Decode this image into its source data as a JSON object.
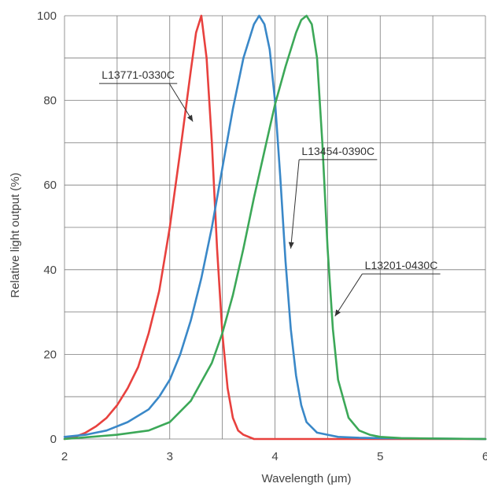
{
  "chart_data": {
    "type": "line",
    "xlabel": "Wavelength (μm)",
    "ylabel": "Relative light output (%)",
    "xlim": [
      2,
      6
    ],
    "ylim": [
      0,
      100
    ],
    "x_ticks": [
      "2",
      "3",
      "4",
      "5",
      "6"
    ],
    "y_ticks": [
      "0",
      "20",
      "40",
      "60",
      "80",
      "100"
    ],
    "grid": true,
    "series": [
      {
        "name": "L13771-0330C",
        "color": "#e8413e",
        "x": [
          2.0,
          2.1,
          2.2,
          2.3,
          2.4,
          2.5,
          2.6,
          2.7,
          2.8,
          2.9,
          3.0,
          3.1,
          3.2,
          3.25,
          3.3,
          3.35,
          3.4,
          3.45,
          3.5,
          3.55,
          3.6,
          3.65,
          3.7,
          3.8,
          4.0,
          4.5,
          5.0,
          6.0
        ],
        "y": [
          0,
          0.5,
          1.5,
          3,
          5,
          8,
          12,
          17,
          25,
          35,
          50,
          68,
          87,
          96,
          100,
          90,
          70,
          45,
          25,
          12,
          5,
          2,
          1,
          0,
          0,
          0,
          0,
          0
        ]
      },
      {
        "name": "L13454-0390C",
        "color": "#3a88c8",
        "x": [
          2.0,
          2.2,
          2.4,
          2.6,
          2.8,
          2.9,
          3.0,
          3.1,
          3.2,
          3.3,
          3.4,
          3.5,
          3.6,
          3.7,
          3.8,
          3.85,
          3.9,
          3.95,
          4.0,
          4.05,
          4.1,
          4.15,
          4.2,
          4.25,
          4.3,
          4.4,
          4.5,
          4.6,
          4.8,
          5.0,
          6.0
        ],
        "y": [
          0.5,
          1,
          2,
          4,
          7,
          10,
          14,
          20,
          28,
          38,
          50,
          64,
          78,
          90,
          98,
          100,
          98,
          92,
          80,
          62,
          42,
          26,
          15,
          8,
          4,
          1.5,
          1,
          0.5,
          0.3,
          0.2,
          0
        ]
      },
      {
        "name": "L13201-0430C",
        "color": "#3ca858",
        "x": [
          2.0,
          2.5,
          2.8,
          3.0,
          3.2,
          3.4,
          3.5,
          3.6,
          3.7,
          3.8,
          3.9,
          4.0,
          4.1,
          4.2,
          4.25,
          4.3,
          4.35,
          4.4,
          4.45,
          4.5,
          4.55,
          4.6,
          4.7,
          4.8,
          4.9,
          5.0,
          5.2,
          6.0
        ],
        "y": [
          0,
          1,
          2,
          4,
          9,
          18,
          25,
          34,
          45,
          57,
          68,
          79,
          88,
          96,
          99,
          100,
          98,
          90,
          70,
          45,
          26,
          14,
          5,
          2,
          1,
          0.5,
          0.2,
          0
        ]
      }
    ],
    "annotations": [
      {
        "text": "L13771-0330C",
        "series": 0,
        "label_x": 2.7,
        "label_y": 84,
        "target_x": 3.22,
        "target_y": 75
      },
      {
        "text": "L13454-0390C",
        "series": 1,
        "label_x": 4.6,
        "label_y": 66,
        "target_x": 4.15,
        "target_y": 45
      },
      {
        "text": "L13201-0430C",
        "series": 2,
        "label_x": 5.2,
        "label_y": 39,
        "target_x": 4.57,
        "target_y": 29
      }
    ]
  }
}
